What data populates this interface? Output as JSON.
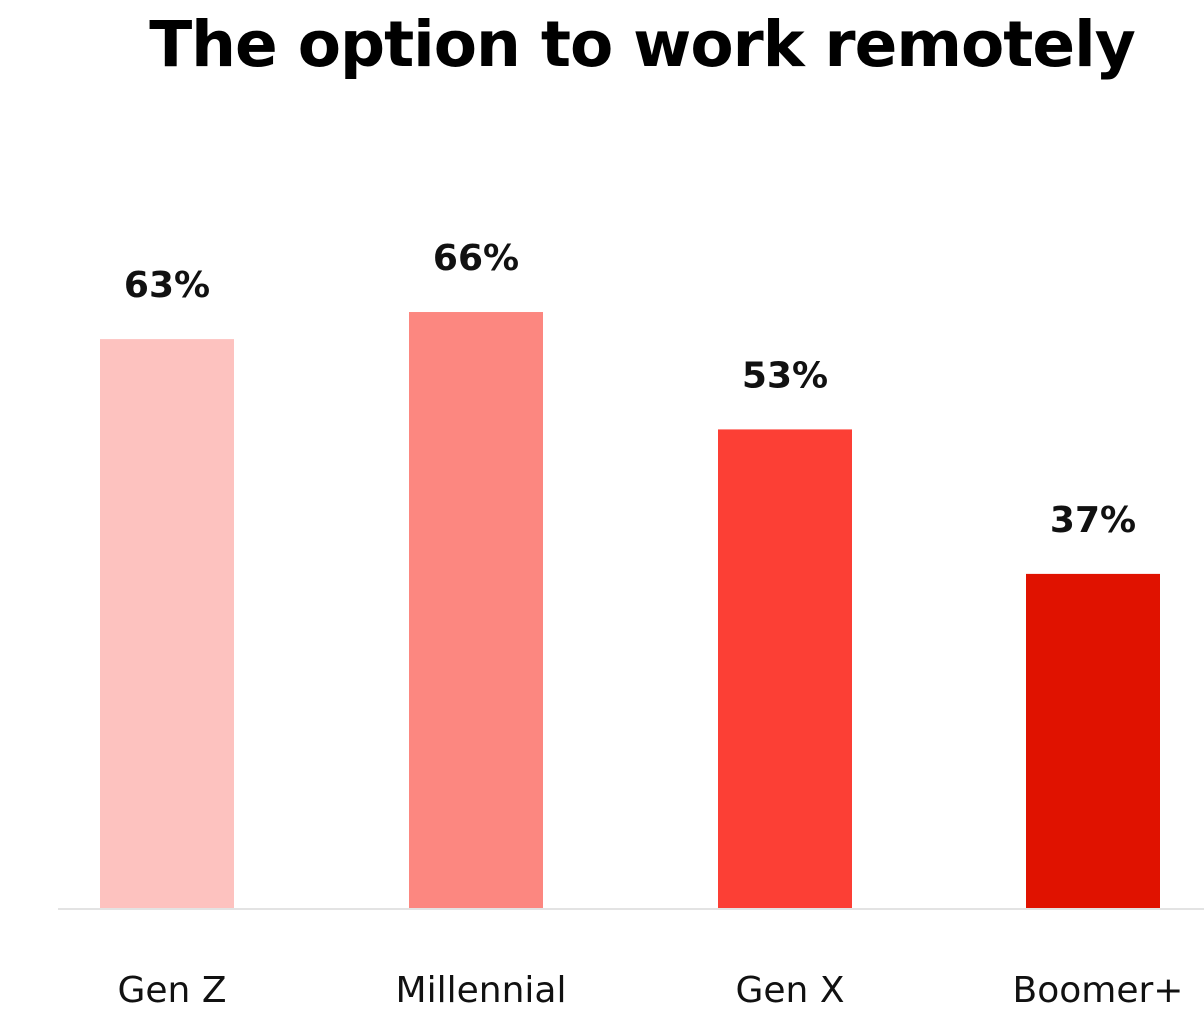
{
  "chart_data": {
    "type": "bar",
    "title": "The option to work remotely",
    "xlabel": "",
    "ylabel": "",
    "categories": [
      "Gen Z",
      "Millennial",
      "Gen X",
      "Boomer+"
    ],
    "values": [
      63,
      66,
      53,
      37
    ],
    "value_labels": [
      "63%",
      "66%",
      "53%",
      "37%"
    ],
    "colors": [
      "#fdc2bf",
      "#fc8780",
      "#fc3f35",
      "#e01200"
    ],
    "ylim": [
      0,
      100
    ],
    "grid": false,
    "legend": "none"
  },
  "axis_color": "#e3e3e3"
}
